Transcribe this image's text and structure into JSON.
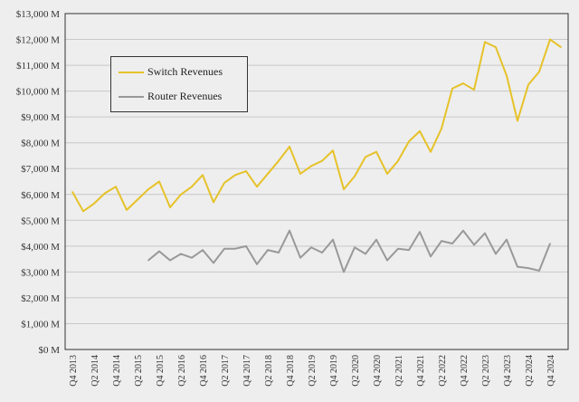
{
  "chart_data": {
    "type": "line",
    "x": [
      "Q4 2013",
      "Q1 2014",
      "Q2 2014",
      "Q3 2014",
      "Q4 2014",
      "Q1 2015",
      "Q2 2015",
      "Q3 2015",
      "Q4 2015",
      "Q1 2016",
      "Q2 2016",
      "Q3 2016",
      "Q4 2016",
      "Q1 2017",
      "Q2 2017",
      "Q3 2017",
      "Q4 2017",
      "Q1 2018",
      "Q2 2018",
      "Q3 2018",
      "Q4 2018",
      "Q1 2019",
      "Q2 2019",
      "Q3 2019",
      "Q4 2019",
      "Q1 2020",
      "Q2 2020",
      "Q3 2020",
      "Q4 2020",
      "Q1 2021",
      "Q2 2021",
      "Q3 2021",
      "Q4 2021",
      "Q1 2022",
      "Q2 2022",
      "Q3 2022",
      "Q4 2022",
      "Q1 2023",
      "Q2 2023",
      "Q3 2023",
      "Q4 2023",
      "Q1 2024",
      "Q2 2024",
      "Q3 2024",
      "Q4 2024",
      "Q1 2025"
    ],
    "x_tick_labels": [
      "Q4 2013",
      "Q2 2014",
      "Q4 2014",
      "Q2 2015",
      "Q4 2015",
      "Q2 2016",
      "Q4 2016",
      "Q2 2017",
      "Q4 2017",
      "Q2 2018",
      "Q4 2018",
      "Q2 2019",
      "Q4 2019",
      "Q2 2020",
      "Q4 2020",
      "Q2 2021",
      "Q4 2021",
      "Q2 2022",
      "Q4 2022",
      "Q2 2023",
      "Q4 2023",
      "Q2 2024",
      "Q4 2024"
    ],
    "y_tick_labels": [
      "$0 M",
      "$1,000 M",
      "$2,000 M",
      "$3,000 M",
      "$4,000 M",
      "$5,000 M",
      "$6,000 M",
      "$7,000 M",
      "$8,000 M",
      "$9,000 M",
      "$10,000 M",
      "$11,000 M",
      "$12,000 M",
      "$13,000 M"
    ],
    "ylim": [
      0,
      13000
    ],
    "grid": true,
    "legend_position": "top-left",
    "series": [
      {
        "name": "Switch Revenues",
        "color": "#e6c229",
        "values": [
          6100,
          5350,
          5650,
          6050,
          6300,
          5400,
          5800,
          6200,
          6500,
          5500,
          6000,
          6300,
          6750,
          5700,
          6450,
          6750,
          6900,
          6300,
          6800,
          7300,
          7850,
          6800,
          7100,
          7300,
          7700,
          6200,
          6700,
          7450,
          7650,
          6800,
          7300,
          8050,
          8450,
          7650,
          8550,
          10100,
          10300,
          10050,
          11900,
          11700,
          10600,
          8850,
          10250,
          10750,
          12000,
          11700
        ]
      },
      {
        "name": "Router Revenues",
        "color": "#999999",
        "values": [
          null,
          null,
          null,
          null,
          null,
          null,
          null,
          3450,
          3800,
          3450,
          3700,
          3550,
          3850,
          3350,
          3900,
          3900,
          4000,
          3300,
          3850,
          3750,
          4600,
          3550,
          3950,
          3750,
          4250,
          3000,
          3950,
          3700,
          4250,
          3450,
          3900,
          3850,
          4550,
          3600,
          4200,
          4100,
          4600,
          4050,
          4500,
          3700,
          4250,
          3200,
          3150,
          3050,
          4100,
          null
        ]
      }
    ]
  }
}
